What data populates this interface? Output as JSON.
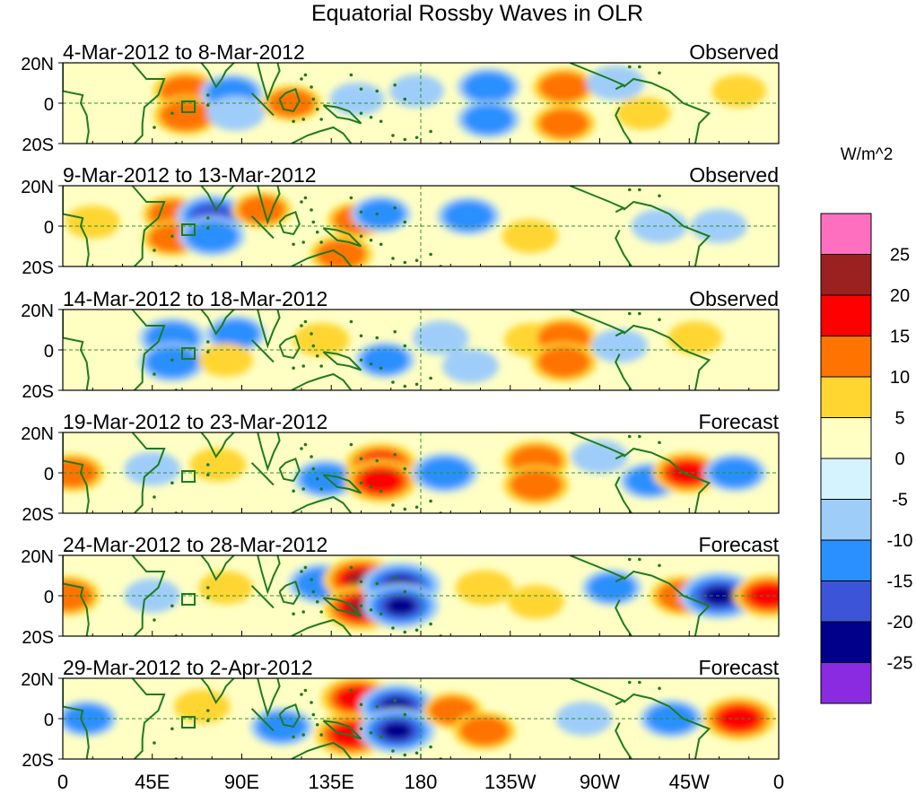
{
  "chart_data": {
    "type": "heatmap",
    "title": "Equatorial Rossby Waves in OLR",
    "units": "W/m^2",
    "x_ticks": [
      "0",
      "45E",
      "90E",
      "135E",
      "180",
      "135W",
      "90W",
      "45W",
      "0"
    ],
    "y_ticks": [
      "20N",
      "0",
      "20S"
    ],
    "x_range_deg": [
      0,
      360
    ],
    "y_range_deg": [
      -20,
      20
    ],
    "colorbar": {
      "labels": [
        "25",
        "20",
        "15",
        "10",
        "5",
        "0",
        "-5",
        "-10",
        "-15",
        "-20",
        "-25"
      ],
      "levels": [
        25,
        20,
        15,
        10,
        5,
        0,
        -5,
        -10,
        -15,
        -20,
        -25
      ],
      "colors": [
        "#ff6fbf",
        "#9b2020",
        "#ff0000",
        "#ff7300",
        "#ffd530",
        "#ffffc4",
        "#d5f3ff",
        "#9fcdf9",
        "#2a8fff",
        "#3c55d8",
        "#00008b",
        "#8a2be2"
      ]
    },
    "panels": [
      {
        "date_range": "4-Mar-2012 to 8-Mar-2012",
        "status": "Observed",
        "features": [
          {
            "lon": 62,
            "lat": 6,
            "value": 12
          },
          {
            "lon": 62,
            "lat": -6,
            "value": 12
          },
          {
            "lon": 85,
            "lat": 5,
            "value": -10
          },
          {
            "lon": 87,
            "lat": -5,
            "value": -7
          },
          {
            "lon": 115,
            "lat": 0,
            "value": 8
          },
          {
            "lon": 148,
            "lat": 2,
            "value": -5
          },
          {
            "lon": 178,
            "lat": 6,
            "value": -5
          },
          {
            "lon": 214,
            "lat": 8,
            "value": -10
          },
          {
            "lon": 214,
            "lat": -8,
            "value": -10
          },
          {
            "lon": 252,
            "lat": 8,
            "value": 10
          },
          {
            "lon": 252,
            "lat": -10,
            "value": 10
          },
          {
            "lon": 278,
            "lat": 10,
            "value": -7
          },
          {
            "lon": 292,
            "lat": -5,
            "value": 5
          },
          {
            "lon": 340,
            "lat": 6,
            "value": 5
          }
        ]
      },
      {
        "date_range": "9-Mar-2012 to 13-Mar-2012",
        "status": "Observed",
        "features": [
          {
            "lon": 15,
            "lat": 2,
            "value": 5
          },
          {
            "lon": 55,
            "lat": 6,
            "value": 8
          },
          {
            "lon": 55,
            "lat": -6,
            "value": 8
          },
          {
            "lon": 75,
            "lat": 5,
            "value": -15
          },
          {
            "lon": 75,
            "lat": -5,
            "value": -12
          },
          {
            "lon": 100,
            "lat": 8,
            "value": 8
          },
          {
            "lon": 140,
            "lat": -14,
            "value": 10
          },
          {
            "lon": 148,
            "lat": 3,
            "value": 8
          },
          {
            "lon": 160,
            "lat": 6,
            "value": -8
          },
          {
            "lon": 204,
            "lat": 5,
            "value": -10
          },
          {
            "lon": 235,
            "lat": -5,
            "value": 6
          },
          {
            "lon": 300,
            "lat": 0,
            "value": -6
          },
          {
            "lon": 330,
            "lat": 0,
            "value": -6
          }
        ]
      },
      {
        "date_range": "14-Mar-2012 to 18-Mar-2012",
        "status": "Observed",
        "features": [
          {
            "lon": 55,
            "lat": 6,
            "value": -12
          },
          {
            "lon": 55,
            "lat": -6,
            "value": -12
          },
          {
            "lon": 87,
            "lat": 8,
            "value": -8
          },
          {
            "lon": 82,
            "lat": -5,
            "value": 5
          },
          {
            "lon": 130,
            "lat": 5,
            "value": 6
          },
          {
            "lon": 162,
            "lat": -5,
            "value": -8
          },
          {
            "lon": 190,
            "lat": 6,
            "value": -6
          },
          {
            "lon": 205,
            "lat": -8,
            "value": -6
          },
          {
            "lon": 236,
            "lat": 5,
            "value": 6
          },
          {
            "lon": 252,
            "lat": 6,
            "value": 12
          },
          {
            "lon": 252,
            "lat": -6,
            "value": 12
          },
          {
            "lon": 280,
            "lat": 2,
            "value": -6
          },
          {
            "lon": 318,
            "lat": 6,
            "value": 5
          }
        ]
      },
      {
        "date_range": "19-Mar-2012 to 23-Mar-2012",
        "status": "Forecast",
        "features": [
          {
            "lon": 5,
            "lat": 0,
            "value": 10
          },
          {
            "lon": 45,
            "lat": 2,
            "value": -6
          },
          {
            "lon": 78,
            "lat": 4,
            "value": 6
          },
          {
            "lon": 132,
            "lat": -3,
            "value": -10
          },
          {
            "lon": 160,
            "lat": 4,
            "value": 16
          },
          {
            "lon": 160,
            "lat": -4,
            "value": 16
          },
          {
            "lon": 192,
            "lat": 0,
            "value": -12
          },
          {
            "lon": 238,
            "lat": 6,
            "value": 12
          },
          {
            "lon": 238,
            "lat": -6,
            "value": 12
          },
          {
            "lon": 270,
            "lat": 8,
            "value": -6
          },
          {
            "lon": 295,
            "lat": -4,
            "value": -8
          },
          {
            "lon": 314,
            "lat": 0,
            "value": 14
          },
          {
            "lon": 338,
            "lat": 0,
            "value": -10
          }
        ]
      },
      {
        "date_range": "24-Mar-2012 to 28-Mar-2012",
        "status": "Forecast",
        "features": [
          {
            "lon": 2,
            "lat": 0,
            "value": 12
          },
          {
            "lon": 45,
            "lat": 0,
            "value": -6
          },
          {
            "lon": 82,
            "lat": 4,
            "value": 5
          },
          {
            "lon": 130,
            "lat": 6,
            "value": -12
          },
          {
            "lon": 150,
            "lat": 8,
            "value": 18
          },
          {
            "lon": 150,
            "lat": -6,
            "value": 18
          },
          {
            "lon": 170,
            "lat": 5,
            "value": -20
          },
          {
            "lon": 170,
            "lat": -5,
            "value": -18
          },
          {
            "lon": 212,
            "lat": 4,
            "value": 7
          },
          {
            "lon": 238,
            "lat": -3,
            "value": 6
          },
          {
            "lon": 276,
            "lat": 4,
            "value": -8
          },
          {
            "lon": 312,
            "lat": 0,
            "value": 12
          },
          {
            "lon": 330,
            "lat": 0,
            "value": -20
          },
          {
            "lon": 355,
            "lat": 0,
            "value": 15
          }
        ]
      },
      {
        "date_range": "29-Mar-2012 to 2-Apr-2012",
        "status": "Forecast",
        "features": [
          {
            "lon": 12,
            "lat": 0,
            "value": -8
          },
          {
            "lon": 70,
            "lat": 6,
            "value": 6
          },
          {
            "lon": 110,
            "lat": -4,
            "value": -10
          },
          {
            "lon": 148,
            "lat": 10,
            "value": 16
          },
          {
            "lon": 145,
            "lat": -8,
            "value": 16
          },
          {
            "lon": 168,
            "lat": 6,
            "value": -18
          },
          {
            "lon": 168,
            "lat": -6,
            "value": -18
          },
          {
            "lon": 196,
            "lat": 4,
            "value": 8
          },
          {
            "lon": 212,
            "lat": -6,
            "value": 10
          },
          {
            "lon": 262,
            "lat": 0,
            "value": -6
          },
          {
            "lon": 306,
            "lat": 0,
            "value": -10
          },
          {
            "lon": 340,
            "lat": 0,
            "value": 16
          }
        ]
      }
    ]
  }
}
